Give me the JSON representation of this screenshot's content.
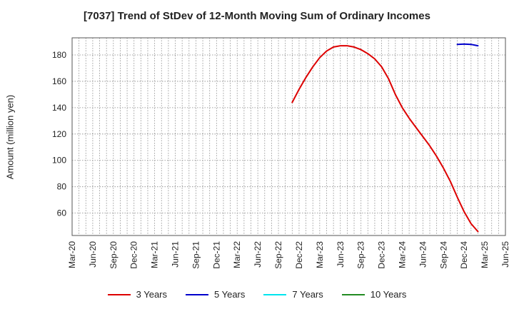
{
  "chart_data": {
    "type": "line",
    "title": "[7037]  Trend of StDev of 12-Month Moving Sum of Ordinary Incomes",
    "ylabel": "Amount (million yen)",
    "xlabel": "",
    "ylim": [
      43,
      193
    ],
    "yticks": [
      60,
      80,
      100,
      120,
      140,
      160,
      180
    ],
    "x_ticks": [
      "Mar-20",
      "Jun-20",
      "Sep-20",
      "Dec-20",
      "Mar-21",
      "Jun-21",
      "Sep-21",
      "Dec-21",
      "Mar-22",
      "Jun-22",
      "Sep-22",
      "Dec-22",
      "Mar-23",
      "Jun-23",
      "Sep-23",
      "Dec-23",
      "Mar-24",
      "Jun-24",
      "Sep-24",
      "Dec-24",
      "Mar-25",
      "Jun-25"
    ],
    "grid": true,
    "legend_position": "bottom",
    "series": [
      {
        "name": "3 Years",
        "color": "#dd0000",
        "points": [
          [
            "Nov-22",
            144
          ],
          [
            "Dec-22",
            154
          ],
          [
            "Jan-23",
            163
          ],
          [
            "Feb-23",
            171
          ],
          [
            "Mar-23",
            178
          ],
          [
            "Apr-23",
            183
          ],
          [
            "May-23",
            186
          ],
          [
            "Jun-23",
            187
          ],
          [
            "Jul-23",
            187
          ],
          [
            "Aug-23",
            186
          ],
          [
            "Sep-23",
            184
          ],
          [
            "Oct-23",
            181
          ],
          [
            "Nov-23",
            177
          ],
          [
            "Dec-23",
            171
          ],
          [
            "Jan-24",
            162
          ],
          [
            "Feb-24",
            150
          ],
          [
            "Mar-24",
            140
          ],
          [
            "Apr-24",
            132
          ],
          [
            "May-24",
            125
          ],
          [
            "Jun-24",
            118
          ],
          [
            "Jul-24",
            111
          ],
          [
            "Aug-24",
            103
          ],
          [
            "Sep-24",
            94
          ],
          [
            "Oct-24",
            84
          ],
          [
            "Nov-24",
            72
          ],
          [
            "Dec-24",
            61
          ],
          [
            "Jan-25",
            52
          ],
          [
            "Feb-25",
            46
          ]
        ]
      },
      {
        "name": "5 Years",
        "color": "#0000cc",
        "points": [
          [
            "Nov-24",
            188
          ],
          [
            "Dec-24",
            188.3
          ],
          [
            "Jan-25",
            188
          ],
          [
            "Feb-25",
            187
          ]
        ]
      },
      {
        "name": "7 Years",
        "color": "#00e5ee",
        "points": []
      },
      {
        "name": "10 Years",
        "color": "#228b22",
        "points": []
      }
    ]
  }
}
